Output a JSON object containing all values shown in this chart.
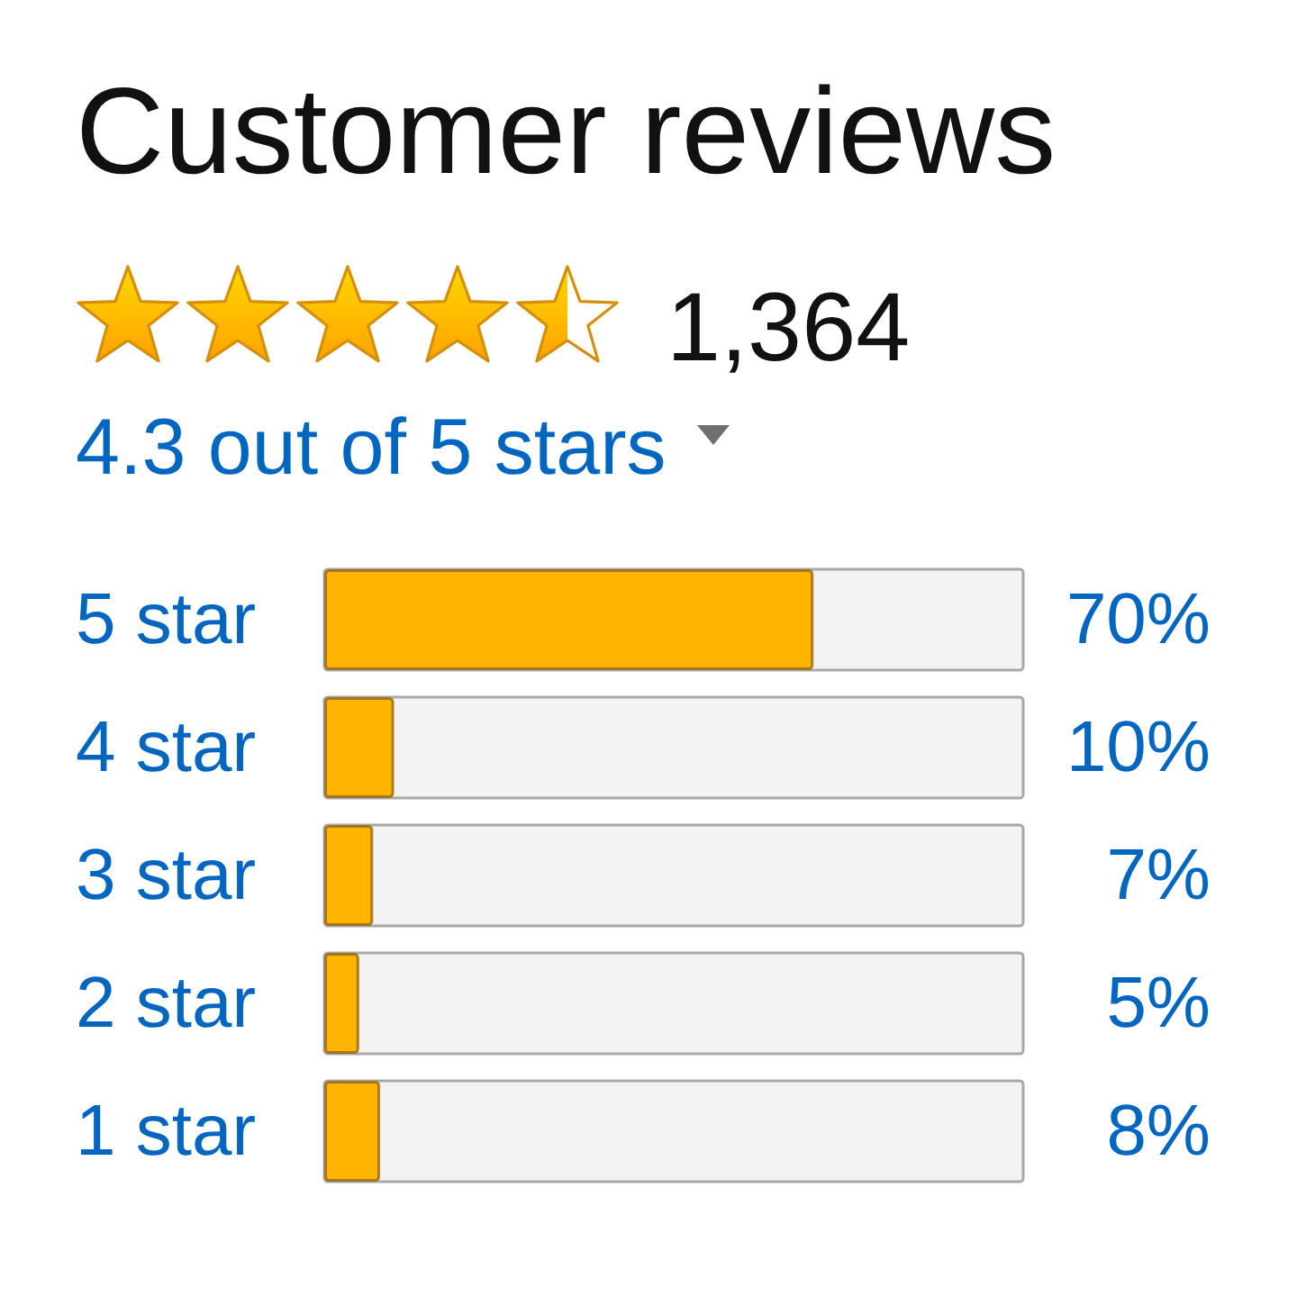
{
  "chart_data": {
    "type": "bar",
    "orientation": "horizontal",
    "title": "Customer reviews",
    "annotations": [
      "1,364",
      "4.3 out of 5 stars"
    ],
    "categories": [
      "5 star",
      "4 star",
      "3 star",
      "2 star",
      "1 star"
    ],
    "values": [
      70,
      10,
      7,
      5,
      8
    ],
    "value_labels": [
      "70%",
      "10%",
      "7%",
      "5%",
      "8%"
    ],
    "color": "#ffb400",
    "xlim": [
      0,
      100
    ],
    "tick_labels": "y"
  }
}
